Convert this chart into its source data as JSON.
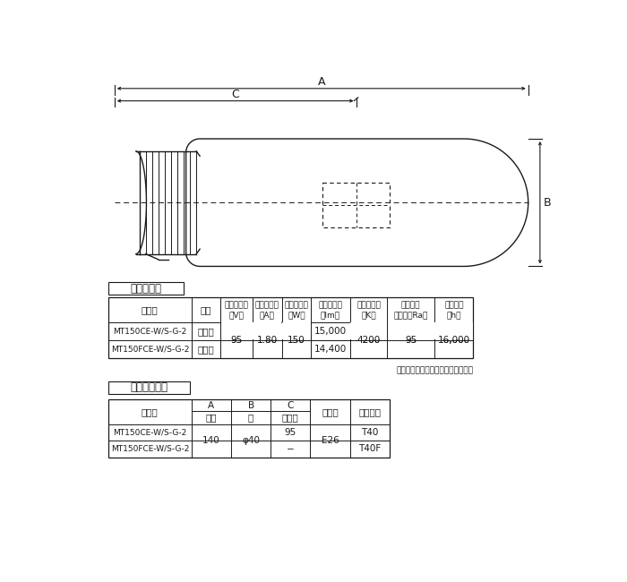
{
  "bg_color": "#ffffff",
  "line_color": "#1a1a1a",
  "title1": "性　能　表",
  "title2": "形状・寸法表",
  "note": "初特性は１００時間値を示します。",
  "perf_h0": "形　式",
  "perf_h1": "種別",
  "perf_h2a": "ランプ電圧",
  "perf_h2b": "（V）",
  "perf_h3a": "ランプ電流",
  "perf_h3b": "（A）",
  "perf_h4a": "ランプ電力",
  "perf_h4b": "（W）",
  "perf_h5a": "全　光　束",
  "perf_h5b": "（lm）",
  "perf_h6a": "相関色温度",
  "perf_h6b": "（K）",
  "perf_h7a": "平均演色",
  "perf_h7b": "評価数（Ra）",
  "perf_h8a": "定格寿命",
  "perf_h8b": "（h）",
  "perf_r1c0": "MT150CE-W/S-G-2",
  "perf_r1c1": "透明形",
  "perf_r1c2": "95",
  "perf_r1c3": "1.80",
  "perf_r1c4": "150",
  "perf_r1c5": "15,000",
  "perf_r1c6": "4200",
  "perf_r1c7": "95",
  "perf_r1c8": "16,000",
  "perf_r2c0": "MT150FCE-W/S-G-2",
  "perf_r2c1": "拡散形",
  "perf_r2c5": "14,400",
  "dim_h0": "形　式",
  "dim_hA": "A",
  "dim_hAs": "全長",
  "dim_hB": "B",
  "dim_hBs": "径",
  "dim_hC": "C",
  "dim_hCs": "光中心",
  "dim_h4": "口　金",
  "dim_h5": "ガラス球",
  "dim_r1c0": "MT150CE-W/S-G-2",
  "dim_r1cA": "140",
  "dim_r1cB": "φ40",
  "dim_r1cC": "95",
  "dim_r1c4": "E26",
  "dim_r1c5": "T40",
  "dim_r2c0": "MT150FCE-W/S-G-2",
  "dim_r2cC": "−",
  "dim_r2c5": "T40F"
}
